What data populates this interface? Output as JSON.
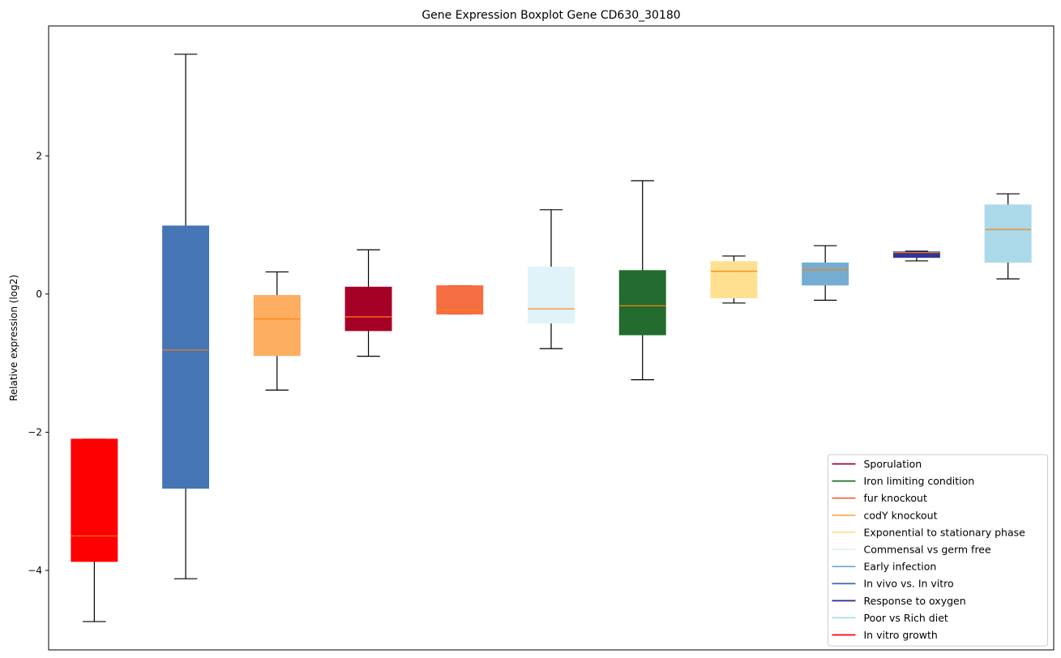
{
  "chart_data": {
    "type": "box",
    "title": "Gene Expression Boxplot Gene CD630_30180",
    "xlabel": "",
    "ylabel": "Relative expression (log2)",
    "ylim": [
      -5.15,
      3.88
    ],
    "yticks": [
      -4,
      -2,
      0,
      2
    ],
    "ytick_labels": [
      "−4",
      "−2",
      "0",
      "2"
    ],
    "grid": false,
    "legend_position": "bottom-right",
    "median_color": "#ff7f0e",
    "boxes": [
      {
        "name": "In vitro growth",
        "color": "#ff0000",
        "whisker_low": -4.74,
        "q1": -3.87,
        "median": -3.5,
        "q3": -2.1,
        "whisker_high": -2.1
      },
      {
        "name": "In vivo vs. In vitro",
        "color": "#4575b4",
        "whisker_low": -4.12,
        "q1": -2.81,
        "median": -0.81,
        "q3": 0.985,
        "whisker_high": 3.47
      },
      {
        "name": "codY knockout",
        "color": "#fdae61",
        "whisker_low": -1.39,
        "q1": -0.89,
        "median": -0.36,
        "q3": -0.02,
        "whisker_high": 0.32
      },
      {
        "name": "Sporulation",
        "color": "#a50026",
        "whisker_low": -0.9,
        "q1": -0.53,
        "median": -0.33,
        "q3": 0.1,
        "whisker_high": 0.64
      },
      {
        "name": "fur knockout",
        "color": "#f46d43",
        "whisker_low": -0.29,
        "q1": -0.29,
        "median": -0.23,
        "q3": 0.12,
        "whisker_high": 0.12
      },
      {
        "name": "Commensal vs germ free",
        "color": "#e0f3f8",
        "whisker_low": -0.79,
        "q1": -0.42,
        "median": -0.215,
        "q3": 0.39,
        "whisker_high": 1.22
      },
      {
        "name": "Iron limiting condition",
        "color": "#236b2f",
        "whisker_low": -1.24,
        "q1": -0.59,
        "median": -0.17,
        "q3": 0.34,
        "whisker_high": 1.64
      },
      {
        "name": "Exponential to stationary phase",
        "color": "#fee090",
        "whisker_low": -0.13,
        "q1": -0.055,
        "median": 0.33,
        "q3": 0.47,
        "whisker_high": 0.55
      },
      {
        "name": "Early infection",
        "color": "#74add1",
        "whisker_low": -0.09,
        "q1": 0.13,
        "median": 0.35,
        "q3": 0.45,
        "whisker_high": 0.7
      },
      {
        "name": "Response to oxygen",
        "color": "#313695",
        "whisker_low": 0.48,
        "q1": 0.53,
        "median": 0.6,
        "q3": 0.61,
        "whisker_high": 0.62
      },
      {
        "name": "Poor vs Rich diet",
        "color": "#abd9e9",
        "whisker_low": 0.22,
        "q1": 0.46,
        "median": 0.935,
        "q3": 1.29,
        "whisker_high": 1.45
      }
    ],
    "legend": [
      {
        "label": "Sporulation",
        "color": "#a50026"
      },
      {
        "label": "Iron limiting condition",
        "color": "#236b2f"
      },
      {
        "label": "fur knockout",
        "color": "#f46d43"
      },
      {
        "label": "codY knockout",
        "color": "#fdae61"
      },
      {
        "label": "Exponential to stationary phase",
        "color": "#fee090"
      },
      {
        "label": "Commensal vs germ free",
        "color": "#e0f3f8"
      },
      {
        "label": "Early infection",
        "color": "#74add1"
      },
      {
        "label": "In vivo vs. In vitro",
        "color": "#4575b4"
      },
      {
        "label": "Response to oxygen",
        "color": "#313695"
      },
      {
        "label": "Poor vs Rich diet",
        "color": "#abd9e9"
      },
      {
        "label": "In vitro growth",
        "color": "#ff0000"
      }
    ]
  }
}
